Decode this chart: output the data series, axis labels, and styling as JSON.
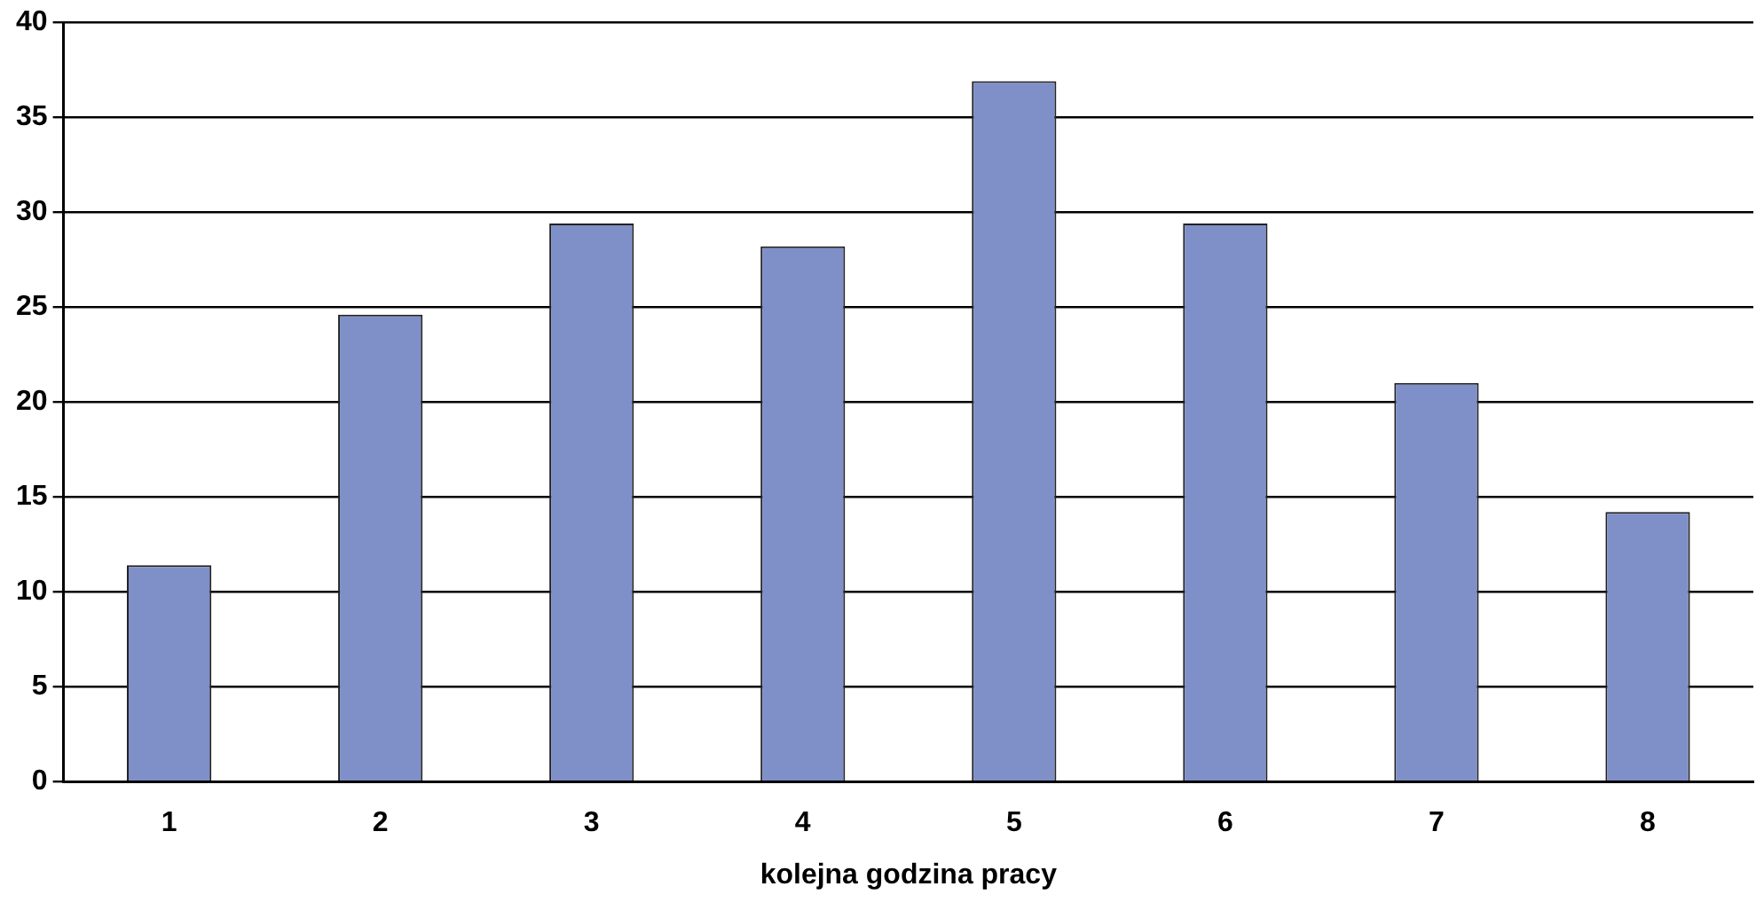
{
  "chart_data": {
    "type": "bar",
    "xlabel": "kolejna godzina pracy",
    "categories": [
      "1",
      "2",
      "3",
      "4",
      "5",
      "6",
      "7",
      "8"
    ],
    "values": [
      11.4,
      24.6,
      29.4,
      28.2,
      36.9,
      29.4,
      21.0,
      14.2
    ],
    "color": "#7f8fc8",
    "ylim": [
      0,
      40
    ],
    "yticks": [
      0,
      5,
      10,
      15,
      20,
      25,
      30,
      35,
      40
    ],
    "grid": "y",
    "legend": false
  }
}
